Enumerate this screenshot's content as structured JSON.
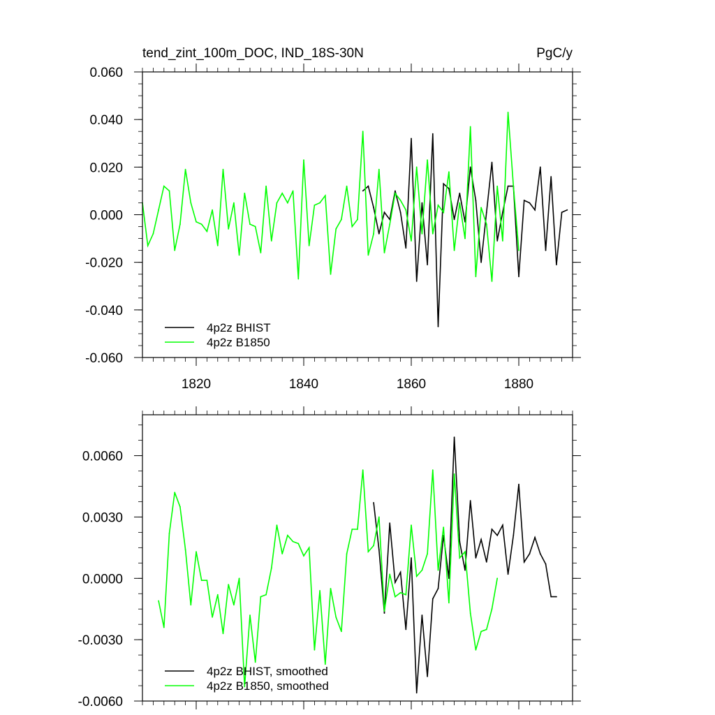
{
  "chart_data": [
    {
      "type": "line",
      "title_left": "tend_zint_100m_DOC, IND_18S-30N",
      "title_right": "PgC/y",
      "xlabel": "",
      "ylabel": "",
      "xlim": [
        1810,
        1890
      ],
      "ylim": [
        -0.06,
        0.06
      ],
      "xticks": [
        1820,
        1840,
        1860,
        1880
      ],
      "xtick_labels": [
        "1820",
        "1840",
        "1860",
        "1880"
      ],
      "yticks": [
        -0.06,
        -0.04,
        -0.02,
        0.0,
        0.02,
        0.04,
        0.06
      ],
      "ytick_labels": [
        "-0.060",
        "-0.040",
        "-0.020",
        "0.000",
        "0.020",
        "0.040",
        "0.060"
      ],
      "legend_position": "bottom-left",
      "series": [
        {
          "name": "4p2z BHIST",
          "color": "#000000",
          "x": [
            1851,
            1852,
            1853,
            1854,
            1855,
            1856,
            1857,
            1858,
            1859,
            1860,
            1861,
            1862,
            1863,
            1864,
            1865,
            1866,
            1867,
            1868,
            1869,
            1870,
            1871,
            1872,
            1873,
            1874,
            1875,
            1876,
            1877,
            1878,
            1879,
            1880,
            1881,
            1882,
            1883,
            1884,
            1885,
            1886,
            1887,
            1888,
            1889
          ],
          "values": [
            0.01,
            0.012,
            0.003,
            -0.008,
            0.001,
            -0.002,
            0.01,
            0.001,
            -0.014,
            0.032,
            -0.028,
            0.005,
            -0.021,
            0.034,
            -0.047,
            0.013,
            0.011,
            -0.002,
            0.009,
            -0.003,
            0.02,
            0.006,
            -0.02,
            0.001,
            0.022,
            -0.011,
            0.001,
            0.012,
            0.012,
            -0.026,
            0.006,
            0.005,
            0.002,
            0.02,
            -0.015,
            0.016,
            -0.021,
            0.001,
            0.002
          ]
        },
        {
          "name": "4p2z B1850",
          "color": "#00ff00",
          "x": [
            1810,
            1811,
            1812,
            1813,
            1814,
            1815,
            1816,
            1817,
            1818,
            1819,
            1820,
            1821,
            1822,
            1823,
            1824,
            1825,
            1826,
            1827,
            1828,
            1829,
            1830,
            1831,
            1832,
            1833,
            1834,
            1835,
            1836,
            1837,
            1838,
            1839,
            1840,
            1841,
            1842,
            1843,
            1844,
            1845,
            1846,
            1847,
            1848,
            1849,
            1850,
            1851,
            1852,
            1853,
            1854,
            1855,
            1856,
            1857,
            1858,
            1859,
            1860,
            1861,
            1862,
            1863,
            1864,
            1865,
            1866,
            1867,
            1868,
            1869,
            1870,
            1871,
            1872,
            1873,
            1874,
            1875,
            1876,
            1877,
            1878,
            1879,
            1880
          ],
          "values": [
            0.005,
            -0.013,
            -0.008,
            0.002,
            0.012,
            0.01,
            -0.015,
            -0.004,
            0.019,
            0.005,
            -0.003,
            -0.004,
            -0.007,
            0.002,
            -0.013,
            0.019,
            -0.006,
            0.005,
            -0.017,
            0.009,
            -0.004,
            -0.005,
            -0.016,
            0.012,
            -0.011,
            0.005,
            0.009,
            0.005,
            0.01,
            -0.027,
            0.023,
            -0.013,
            0.004,
            0.005,
            0.008,
            -0.025,
            -0.006,
            -0.002,
            0.012,
            -0.005,
            -0.002,
            0.035,
            -0.017,
            -0.008,
            0.019,
            -0.016,
            -0.004,
            0.009,
            0.006,
            0.002,
            -0.011,
            0.02,
            -0.008,
            0.023,
            -0.008,
            0.004,
            0.001,
            0.018,
            -0.015,
            0.005,
            -0.01,
            0.037,
            -0.026,
            0.003,
            -0.004,
            -0.028,
            0.012,
            -0.011,
            0.043,
            0.012,
            -0.015
          ]
        }
      ]
    },
    {
      "type": "line",
      "xlabel": "",
      "ylabel": "",
      "xlim": [
        1810,
        1890
      ],
      "ylim": [
        -0.006,
        0.008
      ],
      "xticks": [
        1820,
        1840,
        1860,
        1880
      ],
      "yticks": [
        -0.006,
        -0.003,
        0.0,
        0.003,
        0.006
      ],
      "ytick_labels": [
        "-0.0060",
        "-0.0030",
        "0.0000",
        "0.0030",
        "0.0060"
      ],
      "legend_position": "bottom-left",
      "series": [
        {
          "name": "4p2z BHIST, smoothed",
          "color": "#000000",
          "x": [
            1853,
            1854,
            1855,
            1856,
            1857,
            1858,
            1859,
            1860,
            1861,
            1862,
            1863,
            1864,
            1865,
            1866,
            1867,
            1868,
            1869,
            1870,
            1871,
            1872,
            1873,
            1874,
            1875,
            1876,
            1877,
            1878,
            1879,
            1880,
            1881,
            1882,
            1883,
            1884,
            1885,
            1886,
            1887
          ],
          "values": [
            0.0037,
            0.0014,
            -0.0017,
            0.0027,
            -0.0002,
            0.0003,
            -0.0025,
            0.001,
            -0.0056,
            -0.0018,
            -0.0048,
            -0.001,
            -0.0005,
            0.0021,
            0.0,
            0.0069,
            0.0018,
            0.0004,
            0.0038,
            0.001,
            0.0019,
            0.0008,
            0.0024,
            0.0021,
            0.0026,
            0.0002,
            0.0021,
            0.0046,
            0.0008,
            0.0012,
            0.002,
            0.0012,
            0.0007,
            -0.0009,
            -0.0009
          ]
        },
        {
          "name": "4p2z B1850, smoothed",
          "color": "#00ff00",
          "x": [
            1813,
            1814,
            1815,
            1816,
            1817,
            1818,
            1819,
            1820,
            1821,
            1822,
            1823,
            1824,
            1825,
            1826,
            1827,
            1828,
            1829,
            1830,
            1831,
            1832,
            1833,
            1834,
            1835,
            1836,
            1837,
            1838,
            1839,
            1840,
            1841,
            1842,
            1843,
            1844,
            1845,
            1846,
            1847,
            1848,
            1849,
            1850,
            1851,
            1852,
            1853,
            1854,
            1855,
            1856,
            1857,
            1858,
            1859,
            1860,
            1861,
            1862,
            1863,
            1864,
            1865,
            1866,
            1867,
            1868,
            1869,
            1870,
            1871,
            1872,
            1873,
            1874,
            1875,
            1876
          ],
          "values": [
            -0.0011,
            -0.0024,
            0.0022,
            0.0042,
            0.0035,
            0.0014,
            -0.0013,
            0.0013,
            -0.0001,
            -0.0001,
            -0.0019,
            -0.0008,
            -0.0027,
            -0.0003,
            -0.0013,
            0.0,
            -0.0053,
            -0.0018,
            -0.0041,
            -0.0009,
            -0.0008,
            0.0005,
            0.0026,
            0.0012,
            0.0021,
            0.0018,
            0.0017,
            0.0011,
            0.0015,
            -0.0035,
            -0.0006,
            -0.0042,
            -0.0005,
            -0.0019,
            -0.0026,
            0.0012,
            0.0024,
            0.0024,
            0.0053,
            0.0013,
            0.0016,
            0.003,
            -0.0016,
            0.0002,
            -0.0009,
            -0.0007,
            -0.0008,
            0.0026,
            0.0001,
            0.0004,
            0.0012,
            0.0053,
            0.0004,
            0.0025,
            -0.0012,
            0.0051,
            0.001,
            0.0013,
            -0.0017,
            -0.0035,
            -0.0026,
            -0.0025,
            -0.0015,
            0.0
          ]
        }
      ]
    }
  ]
}
